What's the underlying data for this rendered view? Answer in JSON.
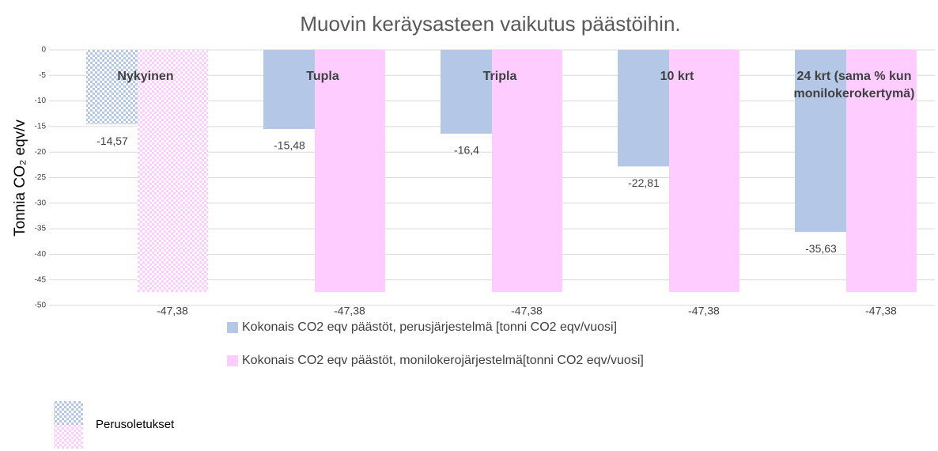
{
  "chart_data": {
    "type": "bar",
    "title": "Muovin keräysasteen vaikutus päästöihin.",
    "y_label": "Tonnia CO₂ eqv/v",
    "categories": [
      "Nykyinen",
      "Tupla",
      "Tripla",
      "10 krt",
      "24 krt (sama % kun monilokerokertymä)"
    ],
    "series": [
      {
        "name": "Kokonais CO2 eqv päästöt, perusjärjestelmä [tonni CO2 eqv/vuosi]",
        "color": "#b4c7e7",
        "values": [
          -14.57,
          -15.48,
          -16.4,
          -22.81,
          -35.63
        ],
        "value_labels": [
          "-14,57",
          "-15,48",
          "-16,4",
          "-22,81",
          "-35,63"
        ]
      },
      {
        "name": "Kokonais CO2 eqv päästöt, monilokerojärjestelmä[tonni CO2 eqv/vuosi]",
        "color": "#ffccff",
        "values": [
          -47.38,
          -47.38,
          -47.38,
          -47.38,
          -47.38
        ],
        "value_labels": [
          "-47,38",
          "-47,38",
          "-47,38",
          "-47,38",
          "-47,38"
        ]
      }
    ],
    "ylim": [
      -50,
      0
    ],
    "yticks": [
      0,
      -5,
      -10,
      -15,
      -20,
      -25,
      -30,
      -35,
      -40,
      -45,
      -50
    ],
    "grid": true,
    "pattern_label": "Perusoletukset",
    "pattern_categories": [
      "Nykyinen"
    ]
  }
}
